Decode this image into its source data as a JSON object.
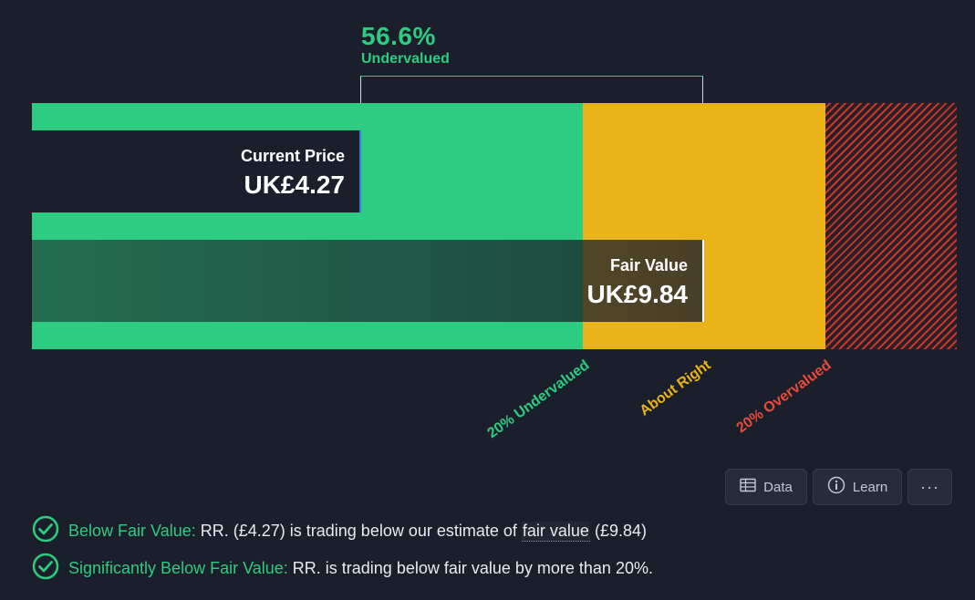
{
  "headline": {
    "percent": "56.6%",
    "label": "Undervalued"
  },
  "current_price": {
    "label": "Current Price",
    "value": "UK£4.27"
  },
  "fair_value": {
    "label": "Fair Value",
    "value": "UK£9.84"
  },
  "zones": {
    "undervalued": "20% Undervalued",
    "about_right": "About Right",
    "overvalued": "20% Overvalued"
  },
  "toolbar": {
    "data_label": "Data",
    "learn_label": "Learn",
    "more_label": "···"
  },
  "checks": [
    {
      "title": "Below Fair Value:",
      "text_before": " RR. (£4.27) is trading below our estimate of ",
      "link": "fair value",
      "text_after": " (£9.84)"
    },
    {
      "title": "Significantly Below Fair Value:",
      "text": " RR. is trading below fair value by more than 20%."
    }
  ],
  "colors": {
    "background": "#1a1f2b",
    "undervalued_green": "#2ecc80",
    "about_right_yellow": "#ebb31a",
    "overvalued_red": "#e74c3c",
    "price_marker_blue": "#2f80ed"
  },
  "icons": [
    "table-icon",
    "info-icon",
    "more-icon",
    "check-circle-icon"
  ]
}
